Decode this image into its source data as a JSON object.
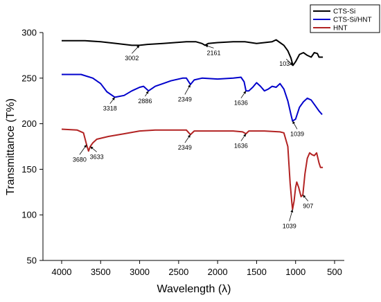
{
  "chart_data": {
    "type": "line",
    "xlabel": "Wavelength (λ)",
    "ylabel": "Transmittance (T%)",
    "xlim": [
      4000,
      500
    ],
    "ylim": [
      50,
      300
    ],
    "x_ticks": [
      4000,
      3500,
      3000,
      2500,
      2000,
      1500,
      1000,
      500
    ],
    "y_ticks": [
      50,
      100,
      150,
      200,
      250,
      300
    ],
    "legend_position": "top-right",
    "grid": false,
    "series": [
      {
        "name": "CTS-Si",
        "color": "#000000",
        "points": [
          [
            4000,
            291
          ],
          [
            3700,
            291
          ],
          [
            3500,
            290
          ],
          [
            3300,
            288
          ],
          [
            3100,
            286
          ],
          [
            3002,
            286
          ],
          [
            2900,
            287
          ],
          [
            2700,
            288
          ],
          [
            2550,
            289
          ],
          [
            2400,
            290
          ],
          [
            2280,
            290
          ],
          [
            2200,
            288
          ],
          [
            2161,
            286
          ],
          [
            2120,
            288
          ],
          [
            2000,
            289
          ],
          [
            1800,
            290
          ],
          [
            1650,
            290
          ],
          [
            1500,
            288
          ],
          [
            1400,
            289
          ],
          [
            1300,
            290
          ],
          [
            1250,
            292
          ],
          [
            1200,
            289
          ],
          [
            1150,
            286
          ],
          [
            1100,
            280
          ],
          [
            1060,
            272
          ],
          [
            1034,
            264
          ],
          [
            1000,
            268
          ],
          [
            950,
            276
          ],
          [
            900,
            278
          ],
          [
            850,
            275
          ],
          [
            800,
            273
          ],
          [
            760,
            278
          ],
          [
            720,
            277
          ],
          [
            700,
            273
          ],
          [
            650,
            273
          ]
        ]
      },
      {
        "name": "CTS-Si/HNT",
        "color": "#0000cc",
        "points": [
          [
            4000,
            254
          ],
          [
            3750,
            254
          ],
          [
            3600,
            250
          ],
          [
            3500,
            244
          ],
          [
            3420,
            235
          ],
          [
            3318,
            229
          ],
          [
            3200,
            231
          ],
          [
            3100,
            236
          ],
          [
            3000,
            240
          ],
          [
            2950,
            241
          ],
          [
            2886,
            236
          ],
          [
            2800,
            241
          ],
          [
            2700,
            244
          ],
          [
            2600,
            247
          ],
          [
            2450,
            250
          ],
          [
            2400,
            250
          ],
          [
            2349,
            243
          ],
          [
            2300,
            248
          ],
          [
            2200,
            250
          ],
          [
            2000,
            249
          ],
          [
            1800,
            250
          ],
          [
            1700,
            251
          ],
          [
            1660,
            246
          ],
          [
            1636,
            236
          ],
          [
            1600,
            236
          ],
          [
            1550,
            240
          ],
          [
            1500,
            245
          ],
          [
            1450,
            241
          ],
          [
            1400,
            236
          ],
          [
            1350,
            238
          ],
          [
            1300,
            241
          ],
          [
            1250,
            240
          ],
          [
            1200,
            244
          ],
          [
            1150,
            238
          ],
          [
            1100,
            225
          ],
          [
            1060,
            210
          ],
          [
            1039,
            203
          ],
          [
            1000,
            205
          ],
          [
            950,
            218
          ],
          [
            900,
            224
          ],
          [
            850,
            228
          ],
          [
            800,
            226
          ],
          [
            750,
            220
          ],
          [
            700,
            214
          ],
          [
            660,
            210
          ]
        ]
      },
      {
        "name": "HNT",
        "color": "#b22222",
        "points": [
          [
            4000,
            194
          ],
          [
            3800,
            193
          ],
          [
            3720,
            190
          ],
          [
            3680,
            177
          ],
          [
            3655,
            170
          ],
          [
            3633,
            175
          ],
          [
            3600,
            179
          ],
          [
            3550,
            183
          ],
          [
            3400,
            186
          ],
          [
            3200,
            189
          ],
          [
            3000,
            192
          ],
          [
            2800,
            193
          ],
          [
            2600,
            193
          ],
          [
            2400,
            193
          ],
          [
            2349,
            188
          ],
          [
            2300,
            192
          ],
          [
            2200,
            192
          ],
          [
            2000,
            192
          ],
          [
            1800,
            192
          ],
          [
            1680,
            191
          ],
          [
            1636,
            189
          ],
          [
            1600,
            192
          ],
          [
            1400,
            192
          ],
          [
            1200,
            191
          ],
          [
            1150,
            190
          ],
          [
            1100,
            175
          ],
          [
            1070,
            135
          ],
          [
            1050,
            115
          ],
          [
            1039,
            106
          ],
          [
            1020,
            115
          ],
          [
            1000,
            130
          ],
          [
            985,
            136
          ],
          [
            960,
            130
          ],
          [
            930,
            120
          ],
          [
            907,
            122
          ],
          [
            880,
            145
          ],
          [
            850,
            162
          ],
          [
            820,
            168
          ],
          [
            790,
            166
          ],
          [
            760,
            165
          ],
          [
            730,
            168
          ],
          [
            700,
            157
          ],
          [
            680,
            152
          ],
          [
            650,
            152
          ]
        ]
      }
    ],
    "annotations": [
      {
        "text": "3002",
        "x": 3002,
        "y": 286,
        "label_x": 3100,
        "label_y": 274
      },
      {
        "text": "2161",
        "x": 2161,
        "y": 286,
        "label_x": 2050,
        "label_y": 280
      },
      {
        "text": "1034",
        "x": 1034,
        "y": 264,
        "label_x": 1120,
        "label_y": 268
      },
      {
        "text": "3318",
        "x": 3318,
        "y": 229,
        "label_x": 3380,
        "label_y": 219
      },
      {
        "text": "2886",
        "x": 2886,
        "y": 236,
        "label_x": 2930,
        "label_y": 227
      },
      {
        "text": "2349",
        "x": 2349,
        "y": 243,
        "label_x": 2420,
        "label_y": 229
      },
      {
        "text": "1636",
        "x": 1636,
        "y": 236,
        "label_x": 1700,
        "label_y": 225
      },
      {
        "text": "1039",
        "x": 1039,
        "y": 203,
        "label_x": 980,
        "label_y": 191
      },
      {
        "text": "2349",
        "x": 2349,
        "y": 188,
        "label_x": 2420,
        "label_y": 176
      },
      {
        "text": "1636",
        "x": 1636,
        "y": 189,
        "label_x": 1700,
        "label_y": 178
      },
      {
        "text": "3680",
        "x": 3680,
        "y": 177,
        "label_x": 3770,
        "label_y": 163
      },
      {
        "text": "3633",
        "x": 3633,
        "y": 175,
        "label_x": 3550,
        "label_y": 166
      },
      {
        "text": "907",
        "x": 907,
        "y": 122,
        "label_x": 840,
        "label_y": 112
      },
      {
        "text": "1039",
        "x": 1039,
        "y": 106,
        "label_x": 1080,
        "label_y": 90
      }
    ]
  }
}
